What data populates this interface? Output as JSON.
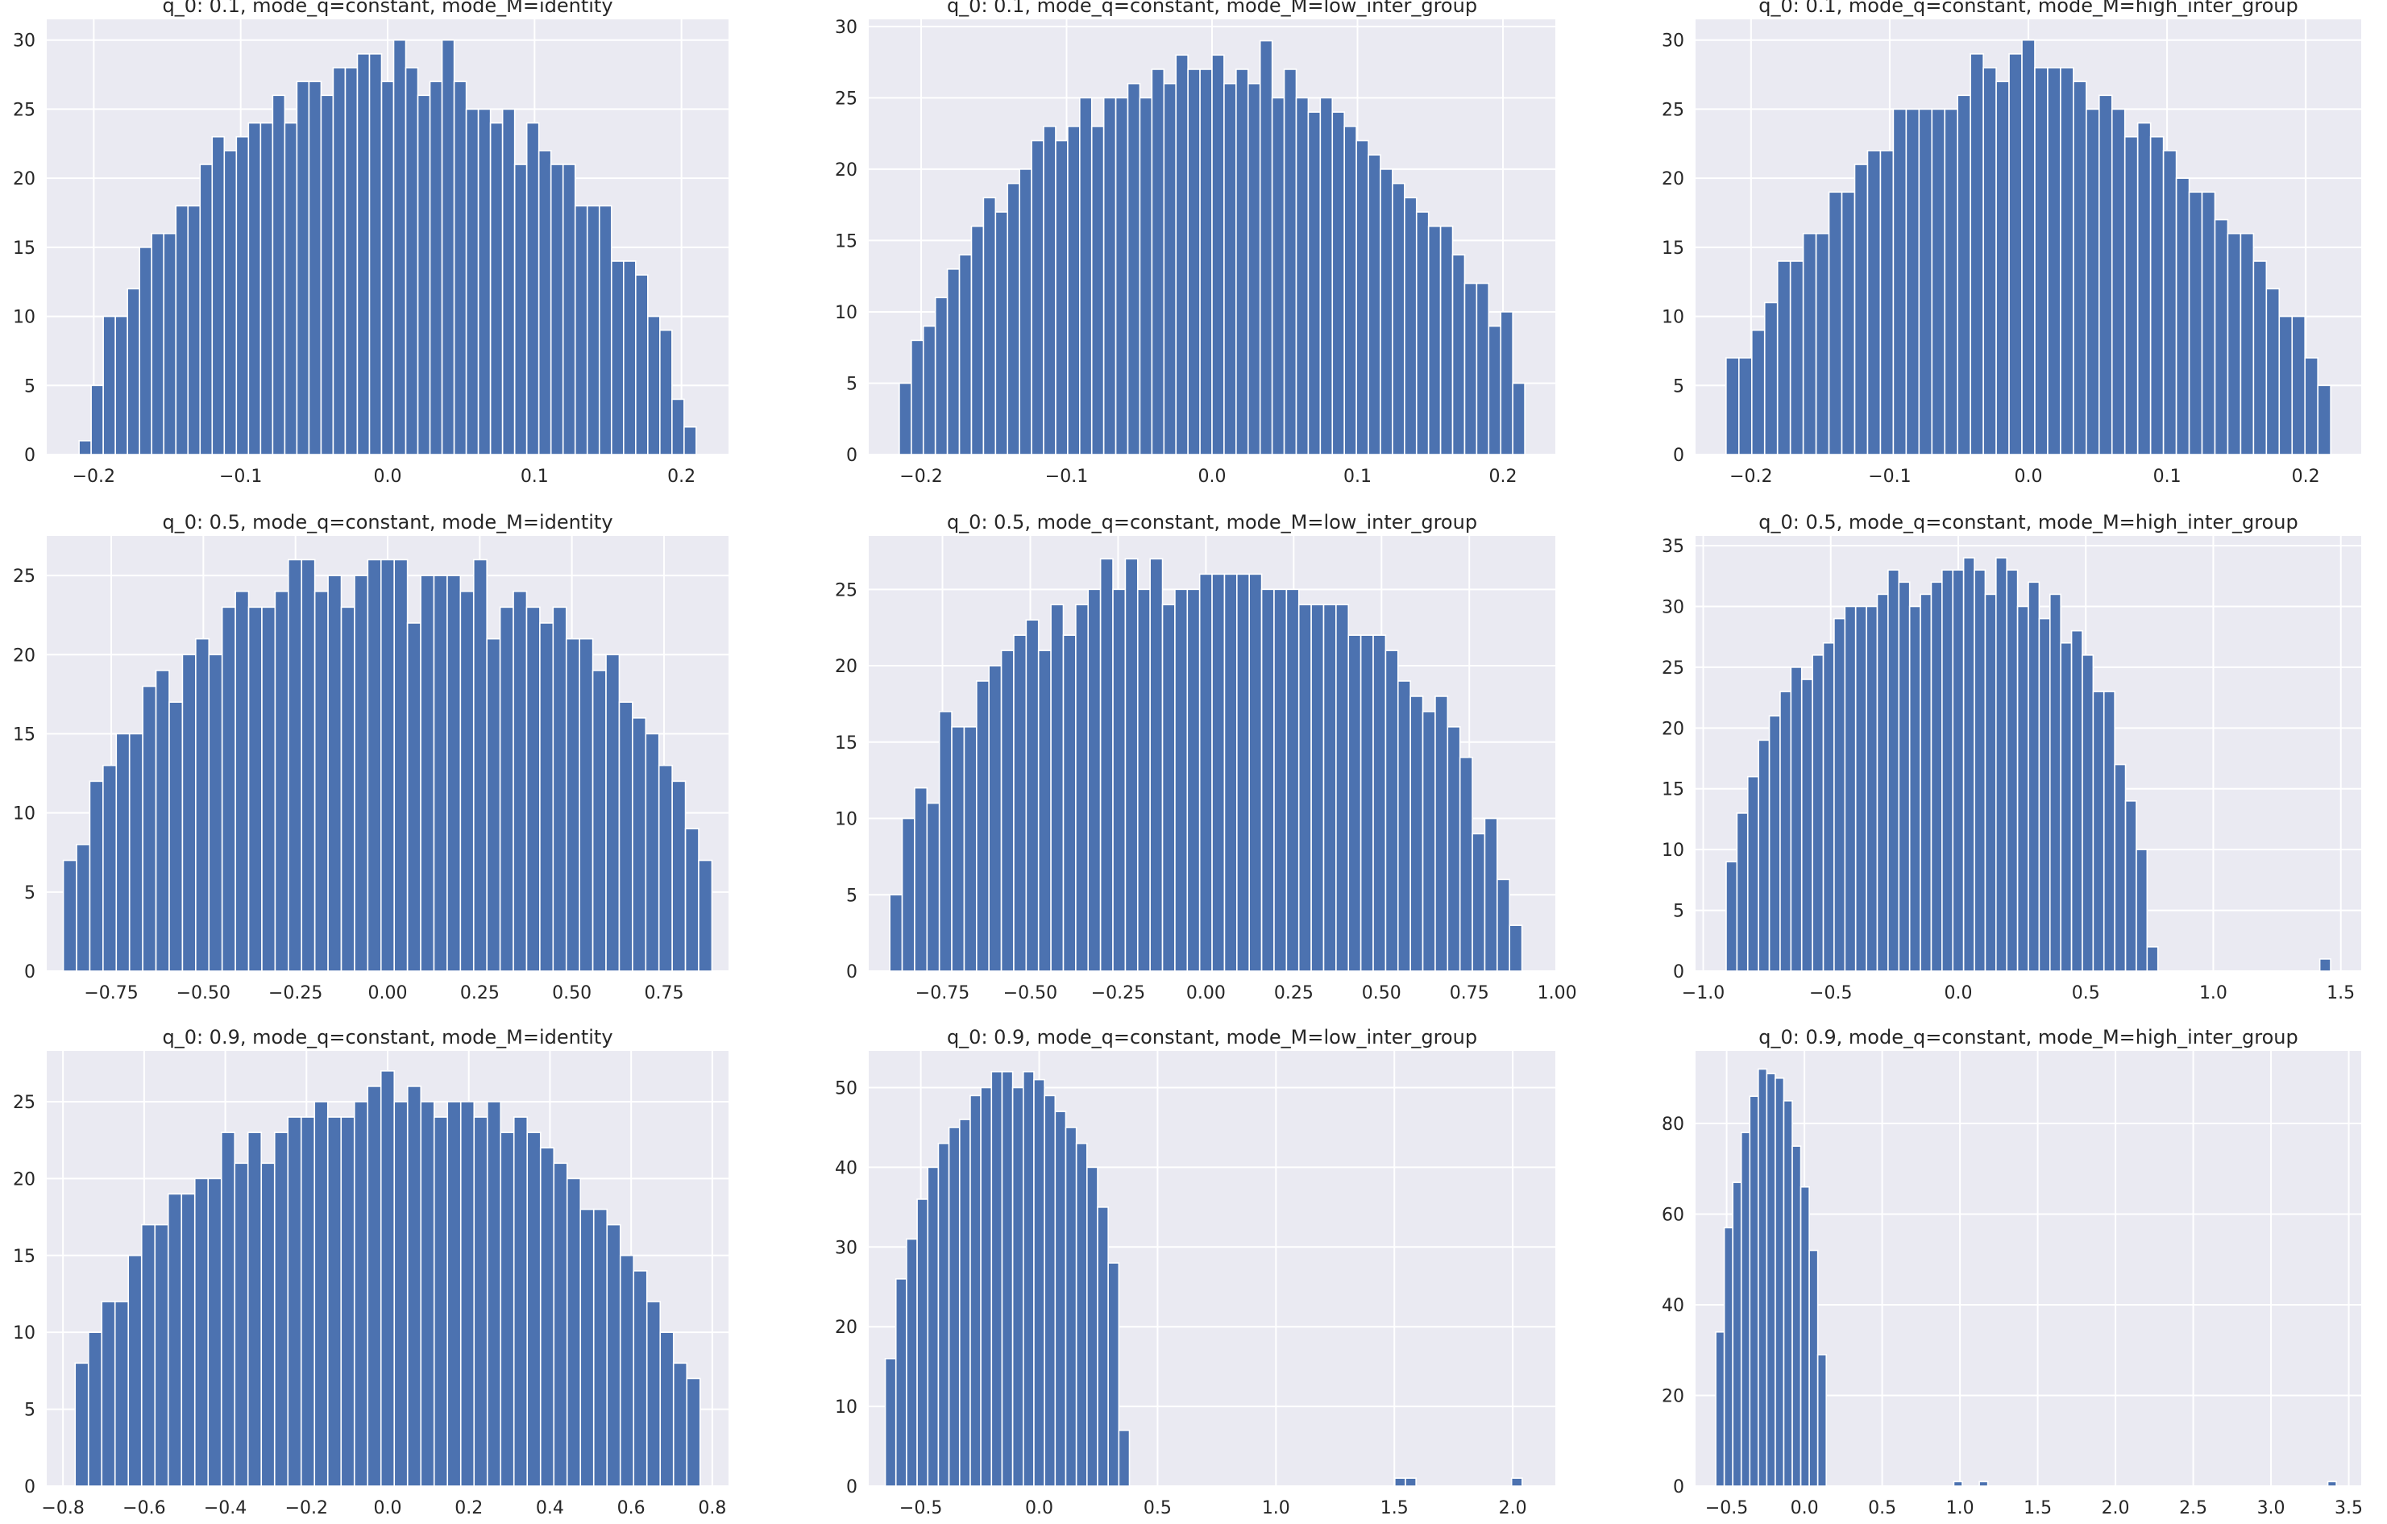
{
  "style": {
    "background": "#ffffff",
    "plot_background": "#eaeaf2",
    "grid_color": "#ffffff",
    "bar_color": "#4c72b0",
    "bar_edge": "#ffffff",
    "text_color": "#262626"
  },
  "chart_data": [
    {
      "type": "bar",
      "title": "q_0: 0.1, mode_q=constant, mode_M=identity",
      "xlabel": "",
      "ylabel": "",
      "xlim": [
        -0.232,
        0.232
      ],
      "ylim": [
        0,
        31.5
      ],
      "xticks": [
        -0.2,
        -0.1,
        0.0,
        0.1,
        0.2
      ],
      "xtick_labels": [
        "−0.2",
        "−0.1",
        "0.0",
        "0.1",
        "0.2"
      ],
      "yticks": [
        0,
        5,
        10,
        15,
        20,
        25,
        30
      ],
      "ytick_labels": [
        "0",
        "5",
        "10",
        "15",
        "20",
        "25",
        "30"
      ],
      "bin_range": [
        -0.21,
        0.21
      ],
      "values": [
        1,
        5,
        10,
        10,
        12,
        15,
        16,
        16,
        18,
        18,
        21,
        23,
        22,
        23,
        24,
        24,
        26,
        24,
        27,
        27,
        26,
        28,
        28,
        29,
        29,
        27,
        30,
        28,
        26,
        27,
        30,
        27,
        25,
        25,
        24,
        25,
        21,
        24,
        22,
        21,
        21,
        18,
        18,
        18,
        14,
        14,
        13,
        10,
        9,
        4,
        2
      ]
    },
    {
      "type": "bar",
      "title": "q_0: 0.1, mode_q=constant, mode_M=low_inter_group",
      "xlabel": "",
      "ylabel": "",
      "xlim": [
        -0.236,
        0.236
      ],
      "ylim": [
        0,
        30.5
      ],
      "xticks": [
        -0.2,
        -0.1,
        0.0,
        0.1,
        0.2
      ],
      "xtick_labels": [
        "−0.2",
        "−0.1",
        "0.0",
        "0.1",
        "0.2"
      ],
      "yticks": [
        0,
        5,
        10,
        15,
        20,
        25,
        30
      ],
      "ytick_labels": [
        "0",
        "5",
        "10",
        "15",
        "20",
        "25",
        "30"
      ],
      "bin_range": [
        -0.215,
        0.215
      ],
      "values": [
        5,
        8,
        9,
        11,
        13,
        14,
        16,
        18,
        17,
        19,
        20,
        22,
        23,
        22,
        23,
        25,
        23,
        25,
        25,
        26,
        25,
        27,
        26,
        28,
        27,
        27,
        28,
        26,
        27,
        26,
        29,
        25,
        27,
        25,
        24,
        25,
        24,
        23,
        22,
        21,
        20,
        19,
        18,
        17,
        16,
        16,
        14,
        12,
        12,
        9,
        10,
        5
      ]
    },
    {
      "type": "bar",
      "title": "q_0: 0.1, mode_q=constant, mode_M=high_inter_group",
      "xlabel": "",
      "ylabel": "",
      "xlim": [
        -0.24,
        0.24
      ],
      "ylim": [
        0,
        31.5
      ],
      "xticks": [
        -0.2,
        -0.1,
        0.0,
        0.1,
        0.2
      ],
      "xtick_labels": [
        "−0.2",
        "−0.1",
        "0.0",
        "0.1",
        "0.2"
      ],
      "yticks": [
        0,
        5,
        10,
        15,
        20,
        25,
        30
      ],
      "ytick_labels": [
        "0",
        "5",
        "10",
        "15",
        "20",
        "25",
        "30"
      ],
      "bin_range": [
        -0.218,
        0.218
      ],
      "values": [
        7,
        7,
        9,
        11,
        14,
        14,
        16,
        16,
        19,
        19,
        21,
        22,
        22,
        25,
        25,
        25,
        25,
        25,
        26,
        29,
        28,
        27,
        29,
        30,
        28,
        28,
        28,
        27,
        25,
        26,
        25,
        23,
        24,
        23,
        22,
        20,
        19,
        19,
        17,
        16,
        16,
        14,
        12,
        10,
        10,
        7,
        5
      ]
    },
    {
      "type": "bar",
      "title": "q_0: 0.5, mode_q=constant, mode_M=identity",
      "xlabel": "",
      "ylabel": "",
      "xlim": [
        -0.925,
        0.925
      ],
      "ylim": [
        0,
        27.5
      ],
      "xticks": [
        -0.75,
        -0.5,
        -0.25,
        0.0,
        0.25,
        0.5,
        0.75
      ],
      "xtick_labels": [
        "−0.75",
        "−0.50",
        "−0.25",
        "0.00",
        "0.25",
        "0.50",
        "0.75"
      ],
      "yticks": [
        0,
        5,
        10,
        15,
        20,
        25
      ],
      "ytick_labels": [
        "0",
        "5",
        "10",
        "15",
        "20",
        "25"
      ],
      "bin_range": [
        -0.88,
        0.88
      ],
      "values": [
        7,
        8,
        12,
        13,
        15,
        15,
        18,
        19,
        17,
        20,
        21,
        20,
        23,
        24,
        23,
        23,
        24,
        26,
        26,
        24,
        25,
        23,
        25,
        26,
        26,
        26,
        22,
        25,
        25,
        25,
        24,
        26,
        21,
        23,
        24,
        23,
        22,
        23,
        21,
        21,
        19,
        20,
        17,
        16,
        15,
        13,
        12,
        9,
        7
      ]
    },
    {
      "type": "bar",
      "title": "q_0: 0.5, mode_q=constant, mode_M=low_inter_group",
      "xlabel": "",
      "ylabel": "",
      "xlim": [
        -0.96,
        0.995
      ],
      "ylim": [
        0,
        28.5
      ],
      "xticks": [
        -0.75,
        -0.5,
        -0.25,
        0.0,
        0.25,
        0.5,
        0.75,
        1.0
      ],
      "xtick_labels": [
        "−0.75",
        "−0.50",
        "−0.25",
        "0.00",
        "0.25",
        "0.50",
        "0.75",
        "1.00"
      ],
      "yticks": [
        0,
        5,
        10,
        15,
        20,
        25
      ],
      "ytick_labels": [
        "0",
        "5",
        "10",
        "15",
        "20",
        "25"
      ],
      "bin_range": [
        -0.9,
        0.9
      ],
      "values": [
        5,
        10,
        12,
        11,
        17,
        16,
        16,
        19,
        20,
        21,
        22,
        23,
        21,
        24,
        22,
        24,
        25,
        27,
        25,
        27,
        25,
        27,
        24,
        25,
        25,
        26,
        26,
        26,
        26,
        26,
        25,
        25,
        25,
        24,
        24,
        24,
        24,
        22,
        22,
        22,
        21,
        19,
        18,
        17,
        18,
        16,
        14,
        9,
        10,
        6,
        3
      ]
    },
    {
      "type": "bar",
      "title": "q_0: 0.5, mode_q=constant, mode_M=high_inter_group",
      "xlabel": "",
      "ylabel": "",
      "xlim": [
        -1.03,
        1.58
      ],
      "ylim": [
        0,
        35.8
      ],
      "xticks": [
        -1.0,
        -0.5,
        0.0,
        0.5,
        1.0,
        1.5
      ],
      "xtick_labels": [
        "−1.0",
        "−0.5",
        "0.0",
        "0.5",
        "1.0",
        "1.5"
      ],
      "yticks": [
        0,
        5,
        10,
        15,
        20,
        25,
        30,
        35
      ],
      "ytick_labels": [
        "0",
        "5",
        "10",
        "15",
        "20",
        "25",
        "30",
        "35"
      ],
      "bin_range": [
        -0.91,
        1.46
      ],
      "values": [
        9,
        13,
        16,
        19,
        21,
        23,
        25,
        24,
        26,
        27,
        29,
        30,
        30,
        30,
        31,
        33,
        32,
        30,
        31,
        32,
        33,
        33,
        34,
        33,
        31,
        34,
        33,
        30,
        32,
        29,
        31,
        27,
        28,
        26,
        23,
        23,
        17,
        14,
        10,
        2,
        0,
        0,
        0,
        0,
        0,
        0,
        0,
        0,
        0,
        0,
        0,
        0,
        0,
        0,
        0,
        1
      ]
    },
    {
      "type": "bar",
      "title": "q_0: 0.9, mode_q=constant, mode_M=identity",
      "xlabel": "",
      "ylabel": "",
      "xlim": [
        -0.84,
        0.84
      ],
      "ylim": [
        0,
        28.3
      ],
      "xticks": [
        -0.8,
        -0.6,
        -0.4,
        -0.2,
        0.0,
        0.2,
        0.4,
        0.6,
        0.8
      ],
      "xtick_labels": [
        "−0.8",
        "−0.6",
        "−0.4",
        "−0.2",
        "0.0",
        "0.2",
        "0.4",
        "0.6",
        "0.8"
      ],
      "yticks": [
        0,
        5,
        10,
        15,
        20,
        25
      ],
      "ytick_labels": [
        "0",
        "5",
        "10",
        "15",
        "20",
        "25"
      ],
      "bin_range": [
        -0.77,
        0.77
      ],
      "values": [
        8,
        10,
        12,
        12,
        15,
        17,
        17,
        19,
        19,
        20,
        20,
        23,
        21,
        23,
        21,
        23,
        24,
        24,
        25,
        24,
        24,
        25,
        26,
        27,
        25,
        26,
        25,
        24,
        25,
        25,
        24,
        25,
        23,
        24,
        23,
        22,
        21,
        20,
        18,
        18,
        17,
        15,
        14,
        12,
        10,
        8,
        7
      ]
    },
    {
      "type": "bar",
      "title": "q_0: 0.9, mode_q=constant, mode_M=low_inter_group",
      "xlabel": "",
      "ylabel": "",
      "xlim": [
        -0.72,
        2.18
      ],
      "ylim": [
        0,
        54.6
      ],
      "xticks": [
        -0.5,
        0.0,
        0.5,
        1.0,
        1.5,
        2.0
      ],
      "xtick_labels": [
        "−0.5",
        "0.0",
        "0.5",
        "1.0",
        "1.5",
        "2.0"
      ],
      "yticks": [
        0,
        10,
        20,
        30,
        40,
        50
      ],
      "ytick_labels": [
        "0",
        "10",
        "20",
        "30",
        "40",
        "50"
      ],
      "bin_range": [
        -0.65,
        2.04
      ],
      "values": [
        16,
        26,
        31,
        36,
        40,
        43,
        45,
        46,
        49,
        50,
        52,
        52,
        50,
        52,
        51,
        49,
        47,
        45,
        43,
        40,
        35,
        28,
        7,
        0,
        0,
        0,
        0,
        0,
        0,
        0,
        0,
        0,
        0,
        0,
        0,
        0,
        0,
        0,
        0,
        0,
        0,
        0,
        0,
        0,
        0,
        0,
        0,
        0,
        1,
        1,
        0,
        0,
        0,
        0,
        0,
        0,
        0,
        0,
        0,
        1
      ]
    },
    {
      "type": "bar",
      "title": "q_0: 0.9, mode_q=constant, mode_M=high_inter_group",
      "xlabel": "",
      "ylabel": "",
      "xlim": [
        -0.7,
        3.58
      ],
      "ylim": [
        0,
        96
      ],
      "xticks": [
        -0.5,
        0.0,
        0.5,
        1.0,
        1.5,
        2.0,
        2.5,
        3.0,
        3.5
      ],
      "xtick_labels": [
        "−0.5",
        "0.0",
        "0.5",
        "1.0",
        "1.5",
        "2.0",
        "2.5",
        "3.0",
        "3.5"
      ],
      "yticks": [
        0,
        20,
        40,
        60,
        80
      ],
      "ytick_labels": [
        "0",
        "20",
        "40",
        "60",
        "80"
      ],
      "bin_range": [
        -0.57,
        3.42
      ],
      "values": [
        34,
        57,
        67,
        78,
        86,
        92,
        91,
        90,
        85,
        75,
        66,
        52,
        29,
        0,
        0,
        0,
        0,
        0,
        0,
        0,
        0,
        0,
        0,
        0,
        0,
        0,
        0,
        0,
        1,
        0,
        0,
        1,
        0,
        0,
        0,
        0,
        0,
        0,
        0,
        0,
        0,
        0,
        0,
        0,
        0,
        0,
        0,
        0,
        0,
        0,
        0,
        0,
        0,
        0,
        0,
        0,
        0,
        0,
        0,
        0,
        0,
        0,
        0,
        0,
        0,
        0,
        0,
        0,
        0,
        0,
        0,
        0,
        1
      ]
    }
  ]
}
